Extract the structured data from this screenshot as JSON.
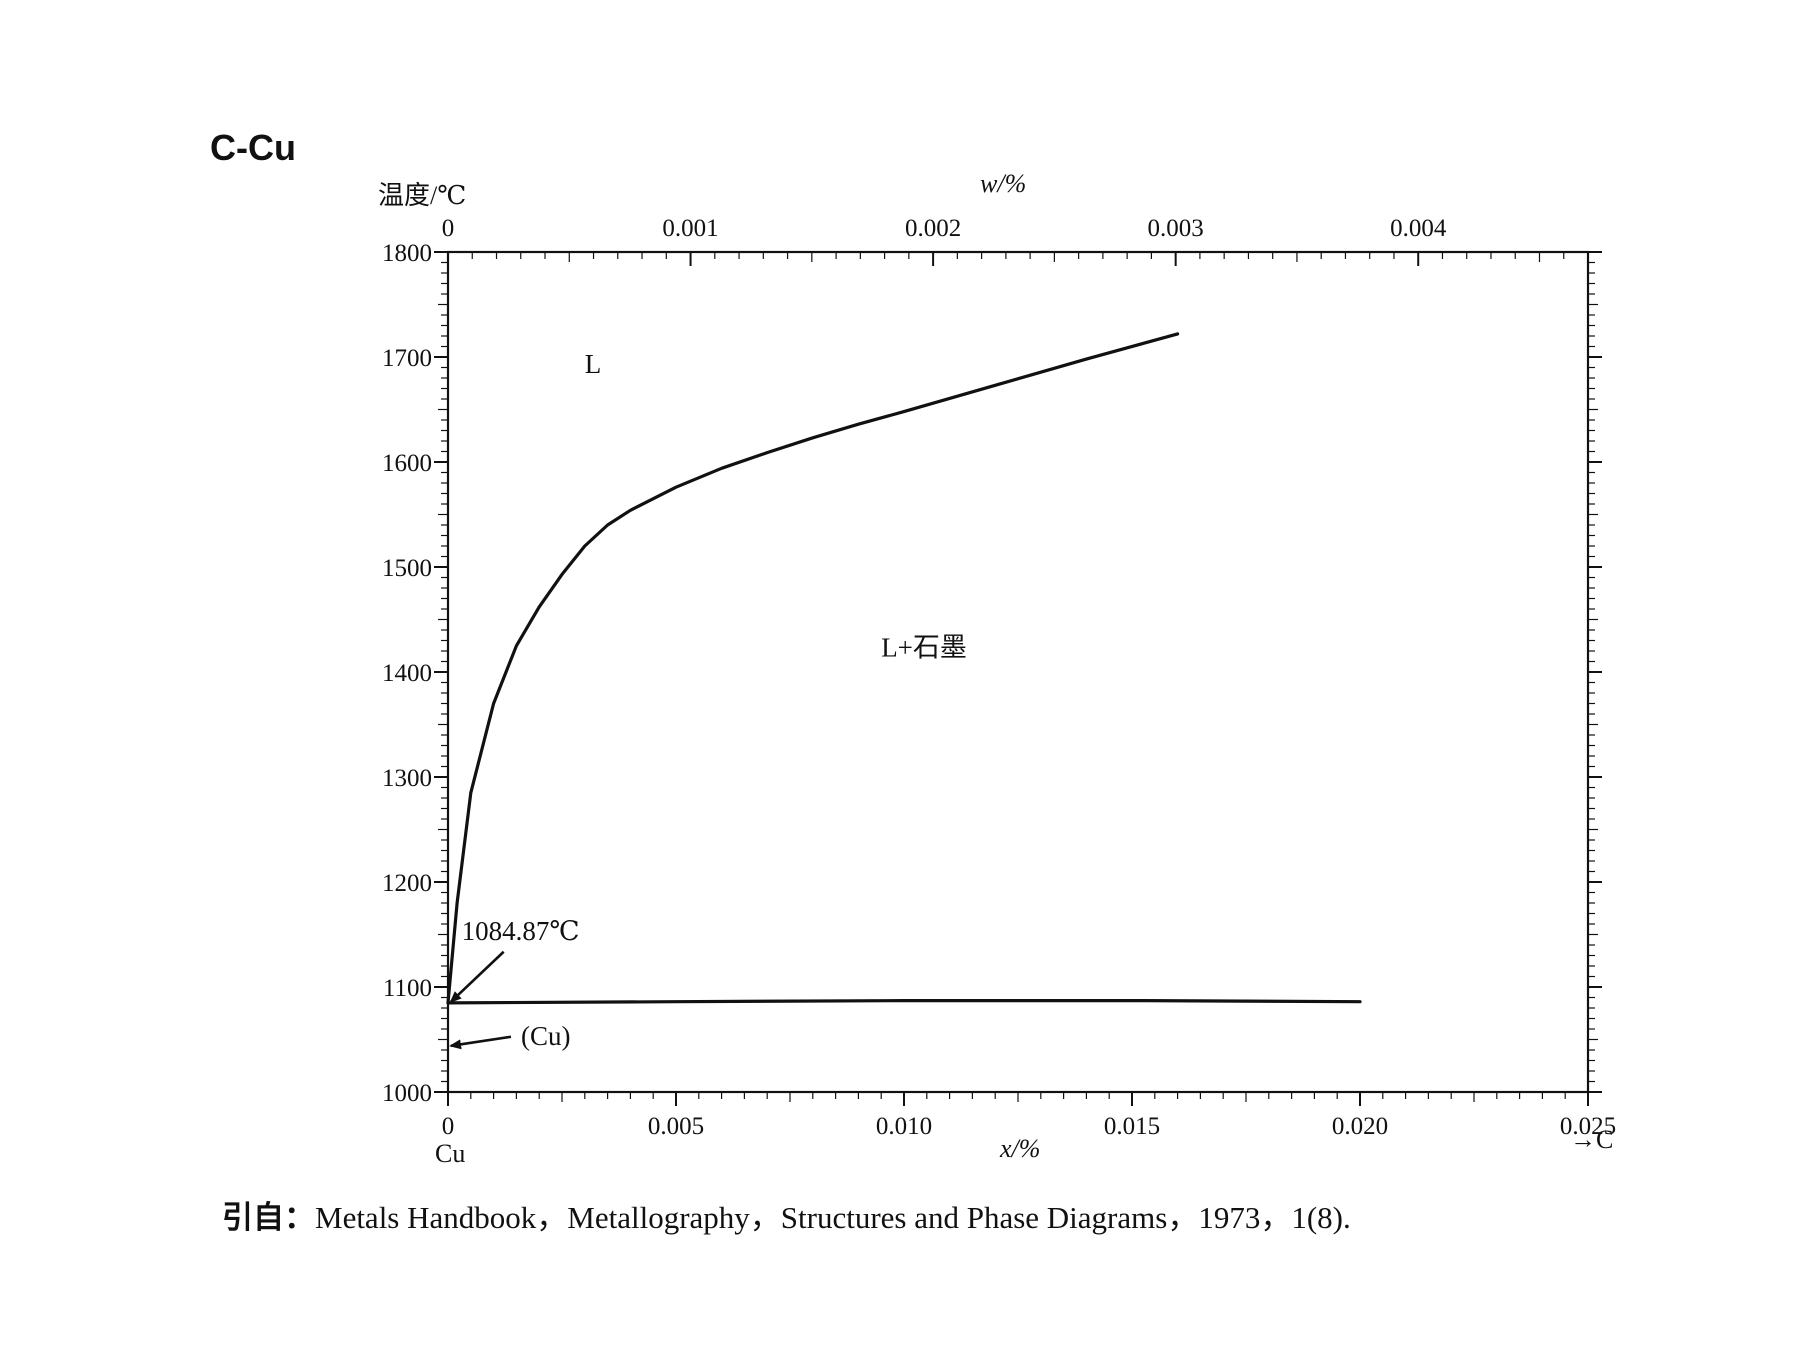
{
  "chart_data": {
    "type": "line",
    "title": "C-Cu",
    "ylabel": "温度/℃",
    "xlabel": "x/%",
    "x2label": "w/%",
    "ylim": [
      1000,
      1800
    ],
    "xlim": [
      0,
      0.025
    ],
    "x2lim": [
      0,
      0.0047
    ],
    "y_ticks": [
      "1000",
      "1100",
      "1200",
      "1300",
      "1400",
      "1500",
      "1600",
      "1700",
      "1800"
    ],
    "x_ticks": [
      "0",
      "0.005",
      "0.010",
      "0.015",
      "0.020",
      "0.025"
    ],
    "x2_ticks": [
      "0",
      "0.001",
      "0.002",
      "0.003",
      "0.004"
    ],
    "x_left_label": "Cu",
    "x_right_label": "→C",
    "series": [
      {
        "x": [
          0,
          0.0002,
          0.0005,
          0.001,
          0.0015,
          0.002,
          0.0025,
          0.003,
          0.0035,
          0.004,
          0.005,
          0.006,
          0.007,
          0.008,
          0.009,
          0.01,
          0.012,
          0.014,
          0.016
        ],
        "y": [
          1084.87,
          1180,
          1285,
          1370,
          1425,
          1462,
          1493,
          1520,
          1540,
          1554,
          1576,
          1594,
          1609,
          1623,
          1636,
          1648,
          1673,
          1698,
          1722
        ]
      },
      {
        "x": [
          0,
          0.005,
          0.01,
          0.015,
          0.02
        ],
        "y": [
          1084.87,
          1086,
          1087,
          1087,
          1086
        ]
      }
    ],
    "annotations": [
      {
        "text": "L",
        "x": 0.003,
        "y": 1685
      },
      {
        "text": "L+石墨",
        "x": 0.0095,
        "y": 1415
      },
      {
        "text": "1084.87℃",
        "x": 0.0003,
        "y": 1145,
        "arrow_to": [
          0,
          1086
        ]
      },
      {
        "text": "(Cu)",
        "x": 0.0016,
        "y": 1045,
        "arrow_to": [
          0,
          1044
        ]
      }
    ]
  },
  "source": {
    "prefix": "引自：",
    "text": "Metals Handbook，Metallography，Structures and Phase Diagrams，1973，1(8)."
  }
}
